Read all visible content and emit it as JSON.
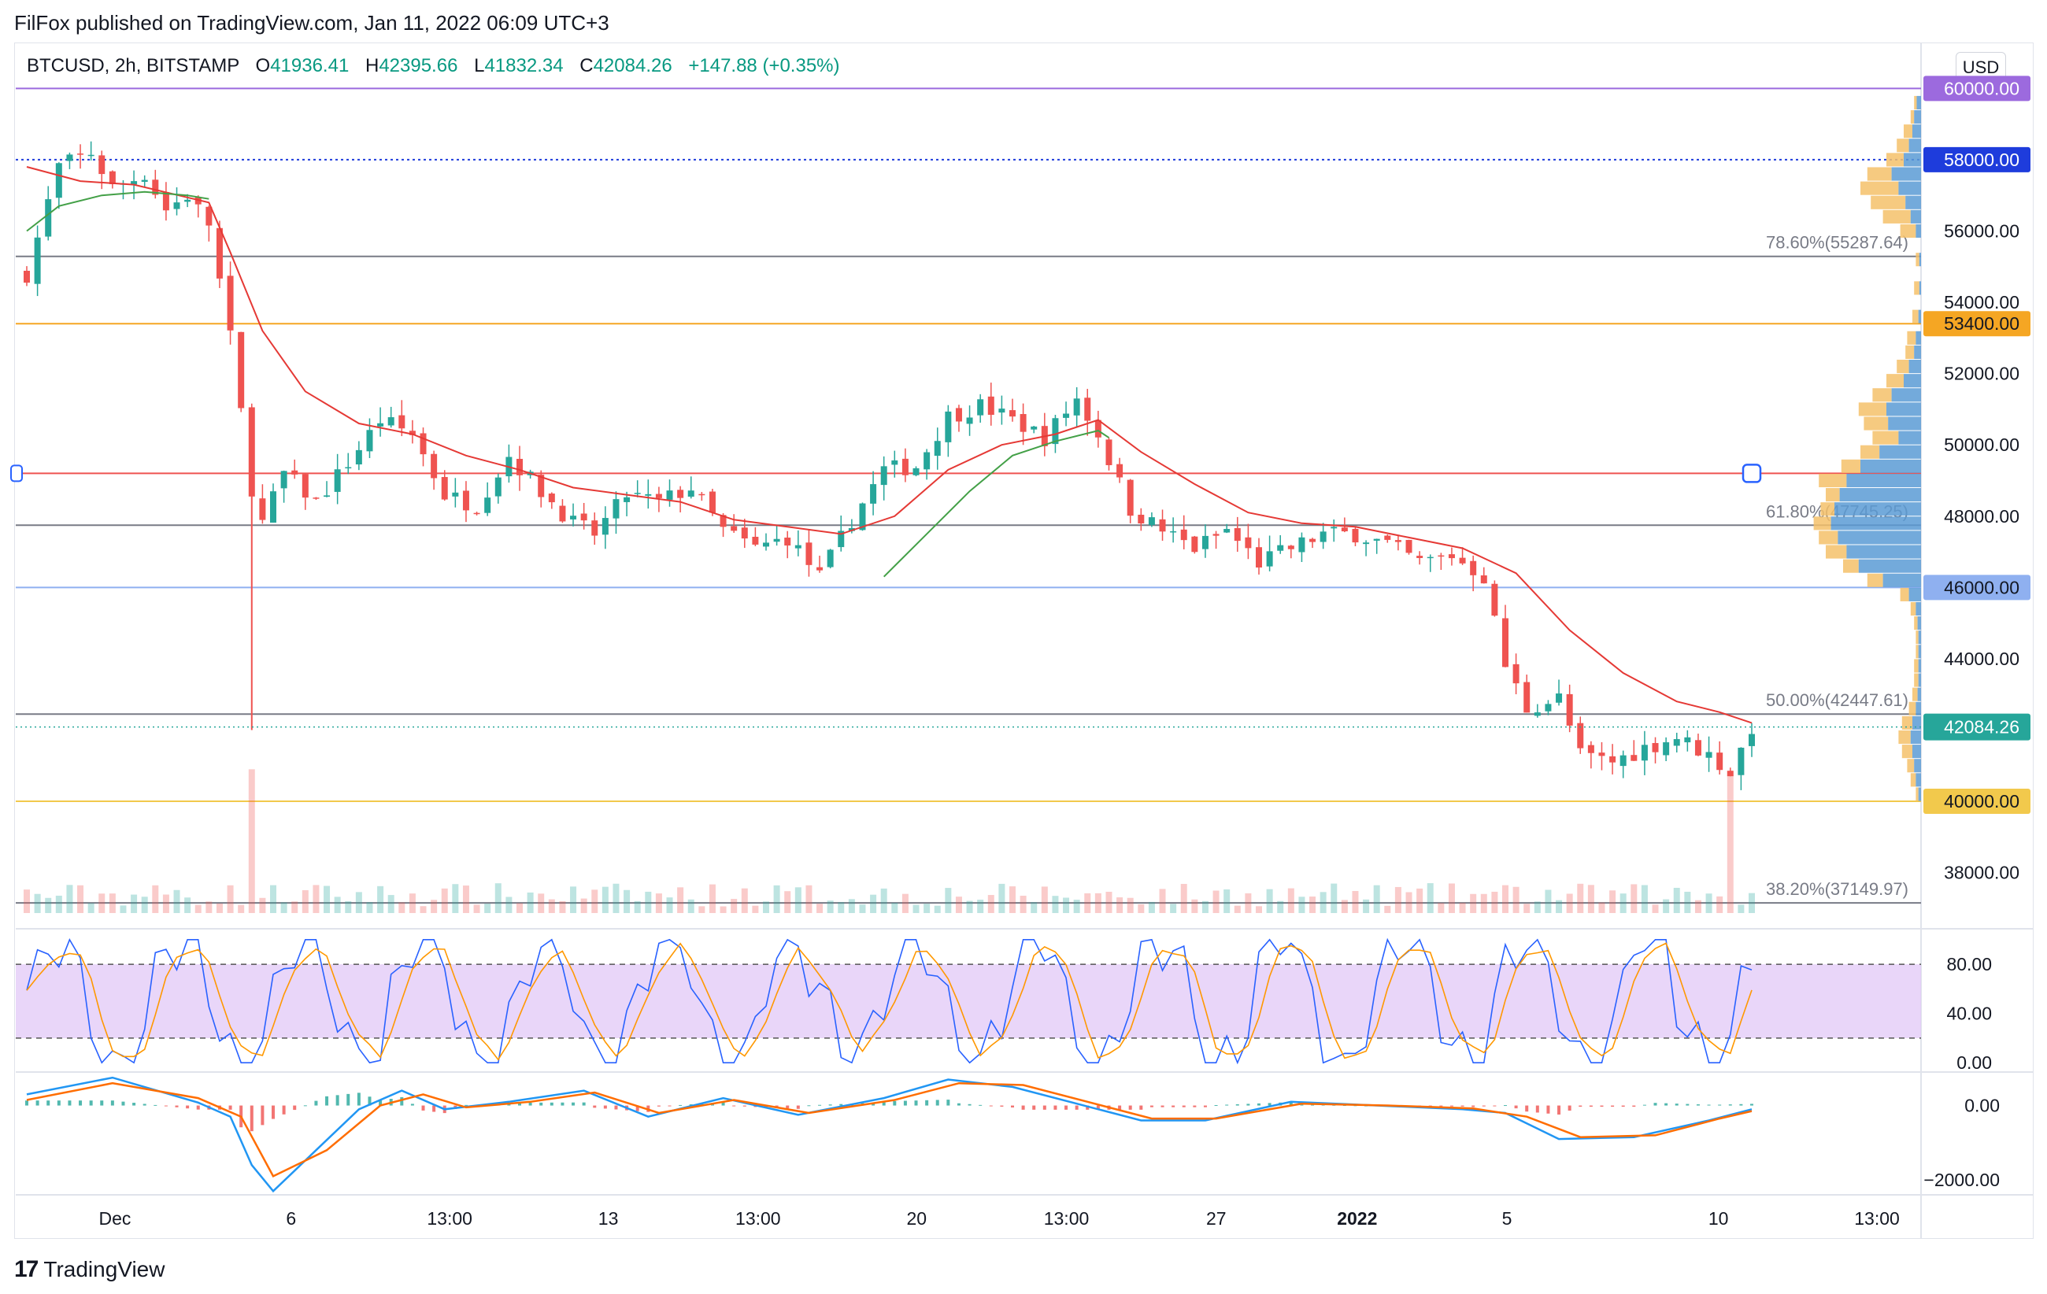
{
  "header": {
    "published": "FilFox published on TradingView.com, Jan 11, 2022 06:09 UTC+3"
  },
  "legend": {
    "symbol": "BTCUSD, 2h, BITSTAMP",
    "open_label": "O",
    "open": "41936.41",
    "high_label": "H",
    "high": "42395.66",
    "low_label": "L",
    "low": "41832.34",
    "close_label": "C",
    "close": "42084.26",
    "change": "+147.88 (+0.35%)"
  },
  "currency_button": "USD",
  "brand": {
    "name": "TradingView",
    "logo_text": "17"
  },
  "colors": {
    "up": "#26a69a",
    "down": "#ef5350",
    "ma_fast": "#e53935",
    "ma_slow": "#43a047",
    "purple": "#9c6ade",
    "navy": "#1e3cdc",
    "orange": "#f5a623",
    "yellow": "#f2c94c",
    "blue_line": "#8fb0f0",
    "fib_gray": "#787b86",
    "rsi_band": "#e1c8f7"
  },
  "chart_data": [
    {
      "type": "candlestick",
      "name": "price",
      "ylim": [
        36600,
        61200
      ],
      "y_ticks": [
        "56000.00",
        "54000.00",
        "52000.00",
        "50000.00",
        "48000.00",
        "44000.00",
        "38000.00"
      ],
      "x_ticks": [
        "Dec",
        "6",
        "13:00",
        "13",
        "13:00",
        "20",
        "13:00",
        "27",
        "2022",
        "5",
        "10",
        "13:00"
      ],
      "current_price": {
        "value": 42084.26,
        "label": "42084.26"
      },
      "horizontal_lines": [
        {
          "value": 60000,
          "label": "60000.00",
          "color": "#9c6ade",
          "style": "solid"
        },
        {
          "value": 58000,
          "label": "58000.00",
          "color": "#1e3cdc",
          "style": "dotted"
        },
        {
          "value": 53400,
          "label": "53400.00",
          "color": "#f5a623",
          "style": "solid"
        },
        {
          "value": 49200,
          "label": "",
          "color": "#ef5350",
          "style": "solid"
        },
        {
          "value": 46000,
          "label": "46000.00",
          "color": "#8fb0f0",
          "style": "solid"
        },
        {
          "value": 40000,
          "label": "40000.00",
          "color": "#f2c94c",
          "style": "solid"
        }
      ],
      "fibonacci": [
        {
          "value": 55287.64,
          "label": "78.60%(55287.64)"
        },
        {
          "value": 47745.25,
          "label": "61.80%(47745.25)"
        },
        {
          "value": 42447.61,
          "label": "50.00%(42447.61)"
        },
        {
          "value": 37149.97,
          "label": "38.20%(37149.97)"
        }
      ],
      "close_path": [
        [
          0,
          54800
        ],
        [
          3,
          57800
        ],
        [
          6,
          58200
        ],
        [
          8,
          57200
        ],
        [
          11,
          57600
        ],
        [
          13,
          56600
        ],
        [
          15,
          57000
        ],
        [
          17,
          56200
        ],
        [
          19,
          53000
        ],
        [
          21,
          48800
        ],
        [
          22,
          47800
        ],
        [
          24,
          49200
        ],
        [
          27,
          48400
        ],
        [
          30,
          49500
        ],
        [
          33,
          50700
        ],
        [
          36,
          50300
        ],
        [
          39,
          48600
        ],
        [
          42,
          48300
        ],
        [
          45,
          49700
        ],
        [
          48,
          48700
        ],
        [
          51,
          47800
        ],
        [
          53,
          47500
        ],
        [
          56,
          48600
        ],
        [
          59,
          48400
        ],
        [
          62,
          48800
        ],
        [
          65,
          47600
        ],
        [
          68,
          47100
        ],
        [
          71,
          47400
        ],
        [
          74,
          46300
        ],
        [
          77,
          47900
        ],
        [
          80,
          49300
        ],
        [
          83,
          49400
        ],
        [
          86,
          50800
        ],
        [
          89,
          51100
        ],
        [
          92,
          50700
        ],
        [
          95,
          50200
        ],
        [
          98,
          51300
        ],
        [
          100,
          50300
        ],
        [
          103,
          48200
        ],
        [
          106,
          47600
        ],
        [
          109,
          47100
        ],
        [
          112,
          47600
        ],
        [
          115,
          46700
        ],
        [
          118,
          47100
        ],
        [
          121,
          47500
        ],
        [
          124,
          47500
        ],
        [
          127,
          47200
        ],
        [
          130,
          46700
        ],
        [
          133,
          46900
        ],
        [
          136,
          46300
        ],
        [
          138,
          43800
        ],
        [
          140,
          42600
        ],
        [
          143,
          42900
        ],
        [
          145,
          41300
        ],
        [
          148,
          41100
        ],
        [
          151,
          41500
        ],
        [
          154,
          41800
        ],
        [
          157,
          41300
        ],
        [
          159,
          40800
        ],
        [
          161,
          42084
        ]
      ],
      "ma_fast_path": [
        [
          0,
          57800
        ],
        [
          5,
          57400
        ],
        [
          10,
          57300
        ],
        [
          17,
          56800
        ],
        [
          19,
          55400
        ],
        [
          22,
          53200
        ],
        [
          26,
          51500
        ],
        [
          31,
          50600
        ],
        [
          36,
          50300
        ],
        [
          41,
          49700
        ],
        [
          46,
          49300
        ],
        [
          51,
          48800
        ],
        [
          56,
          48600
        ],
        [
          61,
          48400
        ],
        [
          66,
          47900
        ],
        [
          71,
          47700
        ],
        [
          76,
          47500
        ],
        [
          81,
          48000
        ],
        [
          86,
          49300
        ],
        [
          91,
          50000
        ],
        [
          96,
          50300
        ],
        [
          100,
          50700
        ],
        [
          104,
          49800
        ],
        [
          109,
          48900
        ],
        [
          114,
          48100
        ],
        [
          119,
          47800
        ],
        [
          124,
          47700
        ],
        [
          129,
          47400
        ],
        [
          134,
          47100
        ],
        [
          139,
          46400
        ],
        [
          144,
          44800
        ],
        [
          149,
          43600
        ],
        [
          154,
          42800
        ],
        [
          158,
          42500
        ],
        [
          161,
          42200
        ]
      ],
      "ma_slow_path": [
        [
          0,
          56000
        ],
        [
          3,
          56700
        ],
        [
          7,
          57000
        ],
        [
          11,
          57100
        ],
        [
          15,
          57000
        ],
        [
          17,
          56900
        ],
        [
          80,
          46300
        ],
        [
          84,
          47500
        ],
        [
          88,
          48700
        ],
        [
          92,
          49700
        ],
        [
          96,
          50100
        ],
        [
          100,
          50400
        ],
        [
          101,
          50200
        ]
      ]
    },
    {
      "type": "volume_profile",
      "name": "volume-profile",
      "note_levels": [
        49200
      ],
      "rows": [
        [
          59600,
          5,
          8
        ],
        [
          59200,
          8,
          12
        ],
        [
          58800,
          10,
          20
        ],
        [
          58400,
          14,
          28
        ],
        [
          58000,
          20,
          40
        ],
        [
          57600,
          34,
          62
        ],
        [
          57200,
          26,
          70
        ],
        [
          56800,
          18,
          58
        ],
        [
          56400,
          12,
          44
        ],
        [
          56000,
          6,
          24
        ],
        [
          55200,
          2,
          6
        ],
        [
          54400,
          2,
          8
        ],
        [
          53600,
          3,
          10
        ],
        [
          53000,
          6,
          16
        ],
        [
          52600,
          8,
          18
        ],
        [
          52200,
          14,
          28
        ],
        [
          51800,
          20,
          40
        ],
        [
          51400,
          34,
          56
        ],
        [
          51000,
          40,
          72
        ],
        [
          50600,
          38,
          66
        ],
        [
          50200,
          26,
          56
        ],
        [
          49800,
          48,
          70
        ],
        [
          49400,
          70,
          92
        ],
        [
          49000,
          86,
          118
        ],
        [
          48600,
          94,
          110
        ],
        [
          48200,
          100,
          116
        ],
        [
          47800,
          104,
          124
        ],
        [
          47400,
          96,
          118
        ],
        [
          47000,
          86,
          110
        ],
        [
          46600,
          72,
          90
        ],
        [
          46200,
          44,
          62
        ],
        [
          45800,
          14,
          24
        ],
        [
          45400,
          6,
          12
        ],
        [
          45000,
          4,
          8
        ],
        [
          44600,
          3,
          6
        ],
        [
          44200,
          3,
          6
        ],
        [
          43800,
          3,
          8
        ],
        [
          43400,
          3,
          8
        ],
        [
          43000,
          4,
          10
        ],
        [
          42600,
          6,
          14
        ],
        [
          42200,
          10,
          22
        ],
        [
          41800,
          12,
          26
        ],
        [
          41400,
          10,
          22
        ],
        [
          41000,
          8,
          16
        ],
        [
          40600,
          6,
          12
        ],
        [
          40200,
          3,
          6
        ]
      ]
    },
    {
      "type": "line",
      "name": "stochastic-rsi",
      "ylim": [
        -5,
        105
      ],
      "y_ticks": [
        "80.00",
        "40.00",
        "0.00"
      ],
      "band": [
        20,
        80
      ],
      "series": [
        {
          "color": "#2962ff",
          "description": "%K"
        },
        {
          "color": "#ff9800",
          "description": "%D"
        }
      ]
    },
    {
      "type": "line",
      "name": "macd",
      "ylim": [
        -2400,
        900
      ],
      "y_ticks": [
        "0.00",
        "−2000.00"
      ],
      "macd_path": [
        [
          0,
          300
        ],
        [
          8,
          750
        ],
        [
          16,
          80
        ],
        [
          19,
          -300
        ],
        [
          21,
          -1600
        ],
        [
          23,
          -2300
        ],
        [
          27,
          -1200
        ],
        [
          31,
          -100
        ],
        [
          35,
          400
        ],
        [
          39,
          -100
        ],
        [
          45,
          100
        ],
        [
          52,
          400
        ],
        [
          58,
          -300
        ],
        [
          65,
          200
        ],
        [
          72,
          -250
        ],
        [
          80,
          200
        ],
        [
          86,
          700
        ],
        [
          92,
          500
        ],
        [
          98,
          50
        ],
        [
          104,
          -400
        ],
        [
          110,
          -400
        ],
        [
          118,
          100
        ],
        [
          126,
          0
        ],
        [
          134,
          -100
        ],
        [
          138,
          -200
        ],
        [
          143,
          -900
        ],
        [
          150,
          -850
        ],
        [
          157,
          -400
        ],
        [
          161,
          -100
        ]
      ],
      "signal_path": [
        [
          0,
          150
        ],
        [
          8,
          600
        ],
        [
          16,
          200
        ],
        [
          20,
          -300
        ],
        [
          23,
          -1900
        ],
        [
          28,
          -1200
        ],
        [
          33,
          0
        ],
        [
          37,
          300
        ],
        [
          41,
          -50
        ],
        [
          47,
          100
        ],
        [
          53,
          350
        ],
        [
          59,
          -200
        ],
        [
          66,
          150
        ],
        [
          73,
          -200
        ],
        [
          81,
          150
        ],
        [
          87,
          600
        ],
        [
          93,
          550
        ],
        [
          99,
          100
        ],
        [
          105,
          -350
        ],
        [
          111,
          -350
        ],
        [
          119,
          50
        ],
        [
          127,
          0
        ],
        [
          135,
          -80
        ],
        [
          140,
          -300
        ],
        [
          145,
          -850
        ],
        [
          152,
          -800
        ],
        [
          158,
          -350
        ],
        [
          161,
          -150
        ]
      ],
      "series": [
        {
          "color": "#2196f3",
          "description": "MACD"
        },
        {
          "color": "#ff6d00",
          "description": "Signal"
        }
      ]
    }
  ]
}
